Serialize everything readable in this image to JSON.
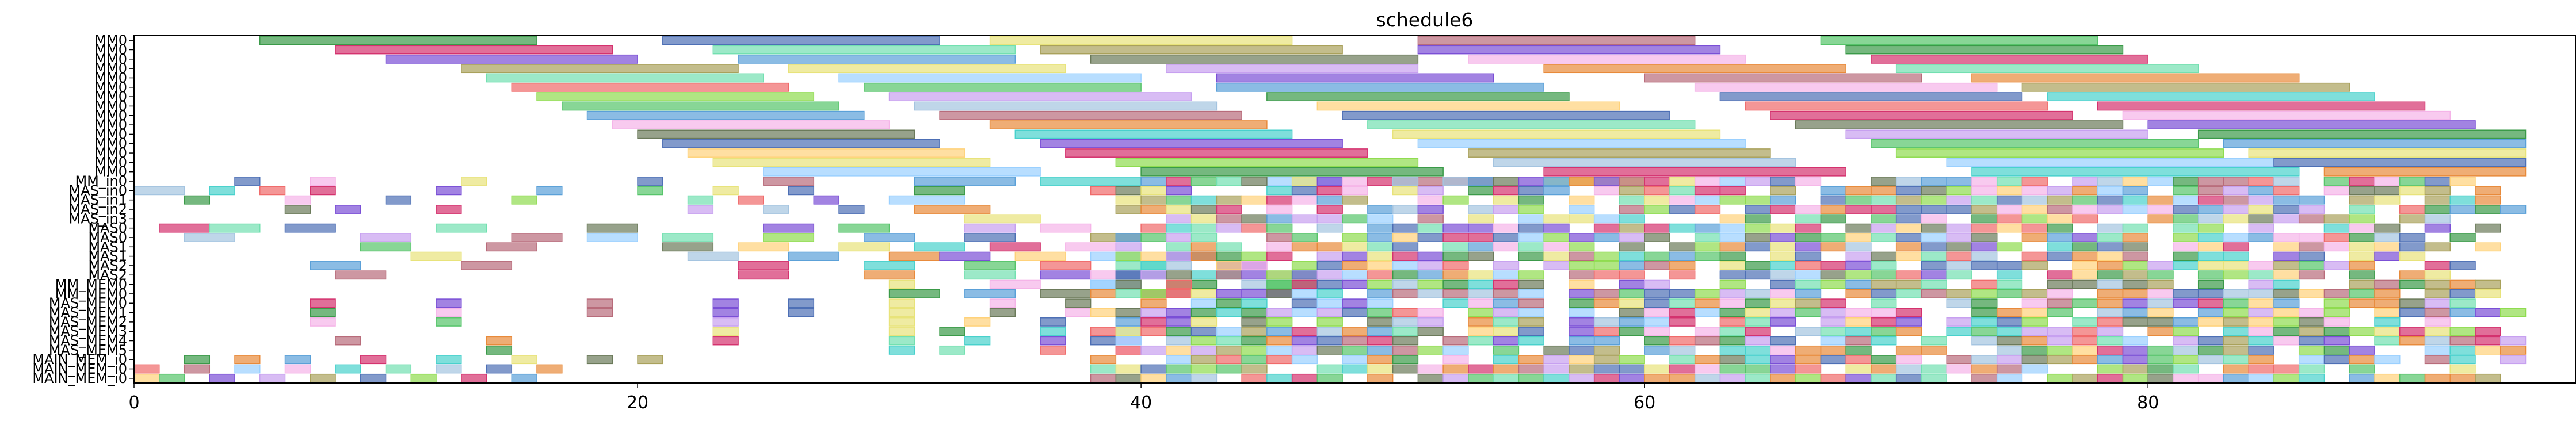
{
  "chart_data": {
    "type": "gantt",
    "title": "schedule6",
    "xlabel": "",
    "ylabel": "",
    "xlim": [
      0,
      97
    ],
    "x_ticks": [
      0,
      20,
      40,
      60,
      80
    ],
    "grid": false,
    "rows": [
      "MM0",
      "MM0",
      "MM0",
      "MM0",
      "MM0",
      "MM0",
      "MM0",
      "MM0",
      "MM0",
      "MM0",
      "MM0",
      "MM0",
      "MM0",
      "MM0",
      "MM0",
      "MM_in0",
      "MAS_in0",
      "MAS_in1",
      "MAS_in2",
      "MAS_in3",
      "MAS0",
      "MAS0",
      "MAS1",
      "MAS1",
      "MAS2",
      "MAS2",
      "MM_MEM0",
      "MM_MEM0",
      "MAS_MEM0",
      "MAS_MEM1",
      "MAS_MEM2",
      "MAS_MEM3",
      "MAS_MEM4",
      "MAS_MEM5",
      "MAIN_MEM_i0",
      "MAIN_MEM_i0",
      "MAIN_MEM_i0"
    ],
    "palette": [
      "#3a9a48",
      "#d4326e",
      "#4d6fb5",
      "#7a4fd6",
      "#e8e37a",
      "#72e0b0",
      "#a9a15b",
      "#b86b7a",
      "#5aa0d8",
      "#f5b4e8",
      "#e88a3a",
      "#56c46a",
      "#9ad0ff",
      "#6b7a5a",
      "#f06a6a",
      "#c7a0f0",
      "#48d1cc",
      "#ffd27a",
      "#8fdc4f",
      "#a4c4e0"
    ],
    "lanes": [
      {
        "tasks": [
          [
            5,
            16,
            0
          ],
          [
            21,
            32,
            2
          ],
          [
            34,
            46,
            4
          ],
          [
            51,
            62,
            7
          ],
          [
            67,
            78,
            11
          ]
        ]
      },
      {
        "tasks": [
          [
            8,
            19,
            1
          ],
          [
            23,
            35,
            5
          ],
          [
            36,
            48,
            6
          ],
          [
            51,
            63,
            3
          ],
          [
            68,
            79,
            0
          ]
        ]
      },
      {
        "tasks": [
          [
            10,
            20,
            3
          ],
          [
            24,
            35,
            8
          ],
          [
            38,
            51,
            13
          ],
          [
            53,
            64,
            9
          ],
          [
            69,
            80,
            1
          ]
        ]
      },
      {
        "tasks": [
          [
            13,
            24,
            6
          ],
          [
            26,
            37,
            4
          ],
          [
            41,
            51,
            15
          ],
          [
            56,
            68,
            10
          ],
          [
            70,
            82,
            5
          ]
        ]
      },
      {
        "tasks": [
          [
            14,
            25,
            5
          ],
          [
            28,
            40,
            12
          ],
          [
            43,
            54,
            3
          ],
          [
            60,
            71,
            7
          ],
          [
            73,
            86,
            10
          ]
        ]
      },
      {
        "tasks": [
          [
            15,
            26,
            14
          ],
          [
            29,
            40,
            11
          ],
          [
            43,
            56,
            8
          ],
          [
            62,
            74,
            9
          ],
          [
            75,
            88,
            6
          ]
        ]
      },
      {
        "tasks": [
          [
            16,
            27,
            18
          ],
          [
            30,
            42,
            15
          ],
          [
            45,
            57,
            0
          ],
          [
            63,
            75,
            2
          ],
          [
            76,
            89,
            16
          ]
        ]
      },
      {
        "tasks": [
          [
            17,
            28,
            11
          ],
          [
            31,
            43,
            19
          ],
          [
            47,
            59,
            17
          ],
          [
            64,
            76,
            14
          ],
          [
            78,
            91,
            1
          ]
        ]
      },
      {
        "tasks": [
          [
            18,
            29,
            8
          ],
          [
            32,
            44,
            7
          ],
          [
            48,
            61,
            2
          ],
          [
            65,
            77,
            1
          ],
          [
            79,
            92,
            9
          ]
        ]
      },
      {
        "tasks": [
          [
            19,
            30,
            9
          ],
          [
            34,
            45,
            10
          ],
          [
            49,
            62,
            5
          ],
          [
            66,
            79,
            13
          ],
          [
            80,
            93,
            3
          ]
        ]
      },
      {
        "tasks": [
          [
            20,
            31,
            13
          ],
          [
            35,
            46,
            16
          ],
          [
            50,
            63,
            4
          ],
          [
            68,
            80,
            15
          ],
          [
            82,
            95,
            0
          ]
        ]
      },
      {
        "tasks": [
          [
            21,
            32,
            2
          ],
          [
            36,
            48,
            3
          ],
          [
            51,
            64,
            12
          ],
          [
            69,
            82,
            11
          ],
          [
            83,
            95,
            8
          ]
        ]
      },
      {
        "tasks": [
          [
            22,
            33,
            17
          ],
          [
            37,
            49,
            1
          ],
          [
            53,
            65,
            6
          ],
          [
            70,
            83,
            18
          ],
          [
            84,
            95,
            4
          ]
        ]
      },
      {
        "tasks": [
          [
            23,
            34,
            4
          ],
          [
            39,
            51,
            18
          ],
          [
            54,
            66,
            19
          ],
          [
            72,
            85,
            12
          ],
          [
            85,
            95,
            2
          ]
        ]
      },
      {
        "tasks": [
          [
            25,
            36,
            12
          ],
          [
            40,
            52,
            0
          ],
          [
            56,
            68,
            1
          ],
          [
            73,
            86,
            16
          ],
          [
            87,
            95,
            10
          ]
        ]
      },
      {
        "tasks": [
          [
            4,
            5,
            2
          ],
          [
            7,
            8,
            9
          ],
          [
            13,
            14,
            4
          ],
          [
            20,
            21,
            2
          ],
          [
            25,
            27,
            7
          ],
          [
            31,
            35,
            8
          ],
          [
            36,
            40,
            16
          ],
          [
            45,
            48,
            12
          ],
          [
            50,
            54,
            7
          ],
          [
            56,
            60,
            4
          ]
        ]
      },
      {
        "tasks": [
          [
            0,
            2,
            19
          ],
          [
            3,
            4,
            16
          ],
          [
            5,
            6,
            14
          ],
          [
            7,
            8,
            1
          ],
          [
            12,
            13,
            3
          ],
          [
            16,
            17,
            8
          ],
          [
            20,
            21,
            11
          ],
          [
            23,
            24,
            4
          ],
          [
            26,
            27,
            2
          ],
          [
            31,
            33,
            0
          ]
        ]
      },
      {
        "tasks": [
          [
            2,
            3,
            0
          ],
          [
            6,
            7,
            9
          ],
          [
            10,
            11,
            2
          ],
          [
            15,
            16,
            18
          ],
          [
            22,
            23,
            5
          ],
          [
            24,
            25,
            14
          ],
          [
            27,
            28,
            3
          ],
          [
            30,
            33,
            12
          ]
        ]
      },
      {
        "tasks": [
          [
            6,
            7,
            13
          ],
          [
            8,
            9,
            3
          ],
          [
            12,
            13,
            1
          ],
          [
            22,
            23,
            15
          ],
          [
            25,
            26,
            19
          ],
          [
            28,
            29,
            2
          ],
          [
            31,
            34,
            10
          ]
        ]
      },
      {
        "tasks": [
          [
            33,
            36,
            4
          ]
        ]
      },
      {
        "tasks": [
          [
            1,
            3,
            1
          ],
          [
            3,
            5,
            5
          ],
          [
            6,
            8,
            2
          ],
          [
            12,
            14,
            5
          ],
          [
            18,
            20,
            13
          ],
          [
            25,
            27,
            3
          ],
          [
            28,
            30,
            11
          ],
          [
            33,
            35,
            15
          ],
          [
            36,
            38,
            9
          ]
        ]
      },
      {
        "tasks": [
          [
            2,
            4,
            19
          ],
          [
            9,
            11,
            15
          ],
          [
            15,
            17,
            7
          ],
          [
            18,
            20,
            12
          ],
          [
            21,
            23,
            5
          ],
          [
            25,
            27,
            18
          ],
          [
            29,
            31,
            8
          ],
          [
            33,
            35,
            2
          ],
          [
            38,
            40,
            6
          ]
        ]
      },
      {
        "tasks": [
          [
            9,
            11,
            11
          ],
          [
            14,
            16,
            7
          ],
          [
            21,
            23,
            13
          ],
          [
            24,
            26,
            17
          ],
          [
            28,
            30,
            4
          ],
          [
            31,
            33,
            16
          ],
          [
            34,
            36,
            1
          ],
          [
            37,
            39,
            9
          ]
        ]
      },
      {
        "tasks": [
          [
            11,
            13,
            4
          ],
          [
            22,
            24,
            19
          ],
          [
            26,
            28,
            8
          ],
          [
            30,
            32,
            10
          ],
          [
            32,
            34,
            3
          ],
          [
            35,
            37,
            17
          ],
          [
            38,
            40,
            12
          ],
          [
            41,
            43,
            2
          ]
        ]
      },
      {
        "tasks": [
          [
            7,
            9,
            8
          ],
          [
            13,
            15,
            7
          ],
          [
            24,
            26,
            1
          ],
          [
            29,
            31,
            16
          ],
          [
            33,
            35,
            11
          ],
          [
            36,
            38,
            14
          ],
          [
            39,
            41,
            5
          ],
          [
            43,
            45,
            3
          ]
        ]
      },
      {
        "tasks": [
          [
            8,
            10,
            7
          ],
          [
            24,
            26,
            1
          ],
          [
            29,
            31,
            10
          ],
          [
            33,
            35,
            5
          ],
          [
            36,
            38,
            3
          ],
          [
            39,
            41,
            2
          ],
          [
            42,
            44,
            16
          ],
          [
            45,
            47,
            9
          ]
        ]
      },
      {
        "tasks": [
          [
            30,
            31,
            4
          ],
          [
            34,
            36,
            9
          ],
          [
            38,
            40,
            12
          ],
          [
            41,
            43,
            0
          ],
          [
            45,
            47,
            11
          ]
        ]
      },
      {
        "tasks": [
          [
            30,
            32,
            0
          ],
          [
            33,
            35,
            8
          ],
          [
            36,
            38,
            13
          ],
          [
            40,
            42,
            7
          ],
          [
            44,
            46,
            3
          ]
        ]
      },
      {
        "tasks": [
          [
            7,
            8,
            1
          ],
          [
            12,
            13,
            3
          ],
          [
            18,
            19,
            7
          ],
          [
            23,
            24,
            3
          ],
          [
            26,
            27,
            2
          ],
          [
            30,
            31,
            4
          ],
          [
            34,
            35,
            9
          ],
          [
            37,
            38,
            13
          ]
        ]
      },
      {
        "tasks": [
          [
            7,
            8,
            0
          ],
          [
            12,
            13,
            9
          ],
          [
            18,
            19,
            7
          ],
          [
            23,
            24,
            3
          ],
          [
            26,
            27,
            2
          ],
          [
            30,
            31,
            4
          ],
          [
            34,
            35,
            13
          ],
          [
            37,
            38,
            9
          ]
        ]
      },
      {
        "tasks": [
          [
            7,
            8,
            9
          ],
          [
            12,
            13,
            11
          ],
          [
            23,
            24,
            15
          ],
          [
            30,
            31,
            4
          ],
          [
            33,
            34,
            17
          ],
          [
            36,
            37,
            2
          ],
          [
            39,
            40,
            8
          ]
        ]
      },
      {
        "tasks": [
          [
            23,
            24,
            4
          ],
          [
            30,
            31,
            4
          ],
          [
            32,
            33,
            0
          ],
          [
            36,
            37,
            16
          ],
          [
            39,
            40,
            12
          ]
        ]
      },
      {
        "tasks": [
          [
            8,
            9,
            7
          ],
          [
            14,
            15,
            10
          ],
          [
            23,
            24,
            1
          ],
          [
            30,
            31,
            5
          ],
          [
            33,
            34,
            16
          ],
          [
            36,
            37,
            3
          ],
          [
            39,
            40,
            15
          ]
        ]
      },
      {
        "tasks": [
          [
            14,
            15,
            0
          ],
          [
            30,
            31,
            16
          ],
          [
            32,
            33,
            5
          ],
          [
            36,
            37,
            14
          ],
          [
            39,
            40,
            9
          ]
        ]
      },
      {
        "tasks": [
          [
            2,
            3,
            0
          ],
          [
            4,
            5,
            10
          ],
          [
            6,
            7,
            8
          ],
          [
            9,
            10,
            1
          ],
          [
            12,
            13,
            16
          ],
          [
            15,
            16,
            4
          ],
          [
            18,
            19,
            13
          ],
          [
            20,
            21,
            6
          ]
        ]
      },
      {
        "tasks": [
          [
            0,
            1,
            14
          ],
          [
            2,
            3,
            7
          ],
          [
            4,
            5,
            12
          ],
          [
            6,
            7,
            9
          ],
          [
            8,
            9,
            16
          ],
          [
            10,
            11,
            5
          ],
          [
            12,
            13,
            19
          ],
          [
            14,
            15,
            2
          ],
          [
            16,
            17,
            10
          ]
        ]
      },
      {
        "tasks": [
          [
            0,
            1,
            17
          ],
          [
            1,
            2,
            11
          ],
          [
            3,
            4,
            3
          ],
          [
            5,
            6,
            15
          ],
          [
            7,
            8,
            6
          ],
          [
            9,
            10,
            2
          ],
          [
            11,
            12,
            18
          ],
          [
            13,
            14,
            1
          ],
          [
            15,
            16,
            8
          ]
        ]
      }
    ],
    "dense_fill": {
      "x_start": 38,
      "x_end": 95,
      "rows_from": 15,
      "rows_to": 36,
      "note": ""
    }
  }
}
